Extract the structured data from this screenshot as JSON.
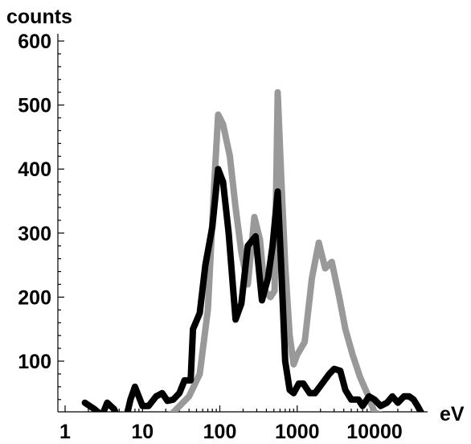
{
  "chart_data": {
    "type": "line",
    "xscale": "log",
    "yscale": "linear",
    "xlim": [
      1,
      50000
    ],
    "ylim": [
      0,
      600
    ],
    "ylabel": "counts",
    "xlabel": "eV",
    "x_ticks": [
      1,
      10,
      100,
      1000,
      10000
    ],
    "x_tick_labels": [
      "1",
      "10",
      "100",
      "1000",
      "10000"
    ],
    "y_ticks": [
      100,
      200,
      300,
      400,
      500,
      600
    ],
    "y_tick_labels": [
      "100",
      "200",
      "300",
      "400",
      "500",
      "600"
    ],
    "grid": false,
    "series": [
      {
        "color": "#999999",
        "points": [
          [
            15,
            0
          ],
          [
            25,
            20
          ],
          [
            40,
            45
          ],
          [
            55,
            80
          ],
          [
            70,
            180
          ],
          [
            85,
            380
          ],
          [
            95,
            485
          ],
          [
            110,
            470
          ],
          [
            135,
            420
          ],
          [
            160,
            340
          ],
          [
            190,
            270
          ],
          [
            230,
            220
          ],
          [
            280,
            325
          ],
          [
            330,
            290
          ],
          [
            380,
            210
          ],
          [
            450,
            200
          ],
          [
            510,
            210
          ],
          [
            560,
            520
          ],
          [
            620,
            390
          ],
          [
            700,
            250
          ],
          [
            800,
            140
          ],
          [
            900,
            95
          ],
          [
            1000,
            110
          ],
          [
            1250,
            130
          ],
          [
            1550,
            230
          ],
          [
            1900,
            285
          ],
          [
            2300,
            245
          ],
          [
            2800,
            255
          ],
          [
            3500,
            200
          ],
          [
            4200,
            150
          ],
          [
            5200,
            110
          ],
          [
            6500,
            75
          ],
          [
            8000,
            50
          ],
          [
            10000,
            20
          ],
          [
            13000,
            15
          ],
          [
            25000,
            15
          ],
          [
            38000,
            0
          ]
        ]
      },
      {
        "color": "#000000",
        "points": [
          [
            1.8,
            35
          ],
          [
            2.4,
            25
          ],
          [
            3,
            15
          ],
          [
            3.5,
            35
          ],
          [
            4.3,
            25
          ],
          [
            5,
            5
          ],
          [
            6,
            5
          ],
          [
            7,
            40
          ],
          [
            8,
            60
          ],
          [
            10,
            30
          ],
          [
            12,
            30
          ],
          [
            15,
            45
          ],
          [
            18,
            50
          ],
          [
            21,
            38
          ],
          [
            25,
            40
          ],
          [
            30,
            50
          ],
          [
            35,
            70
          ],
          [
            42,
            70
          ],
          [
            45,
            150
          ],
          [
            55,
            175
          ],
          [
            65,
            250
          ],
          [
            80,
            310
          ],
          [
            95,
            400
          ],
          [
            110,
            380
          ],
          [
            130,
            300
          ],
          [
            160,
            165
          ],
          [
            190,
            190
          ],
          [
            230,
            280
          ],
          [
            290,
            295
          ],
          [
            350,
            195
          ],
          [
            420,
            230
          ],
          [
            480,
            280
          ],
          [
            560,
            365
          ],
          [
            620,
            250
          ],
          [
            700,
            100
          ],
          [
            800,
            55
          ],
          [
            900,
            50
          ],
          [
            1050,
            65
          ],
          [
            1200,
            65
          ],
          [
            1450,
            50
          ],
          [
            1700,
            50
          ],
          [
            2100,
            65
          ],
          [
            2600,
            80
          ],
          [
            3000,
            88
          ],
          [
            3600,
            85
          ],
          [
            4200,
            55
          ],
          [
            5000,
            40
          ],
          [
            6200,
            40
          ],
          [
            7000,
            30
          ],
          [
            8500,
            45
          ],
          [
            10000,
            40
          ],
          [
            12000,
            30
          ],
          [
            14500,
            35
          ],
          [
            17000,
            45
          ],
          [
            20000,
            35
          ],
          [
            24000,
            45
          ],
          [
            28000,
            45
          ],
          [
            32000,
            40
          ],
          [
            36000,
            30
          ],
          [
            40000,
            20
          ],
          [
            44000,
            5
          ]
        ]
      }
    ]
  }
}
